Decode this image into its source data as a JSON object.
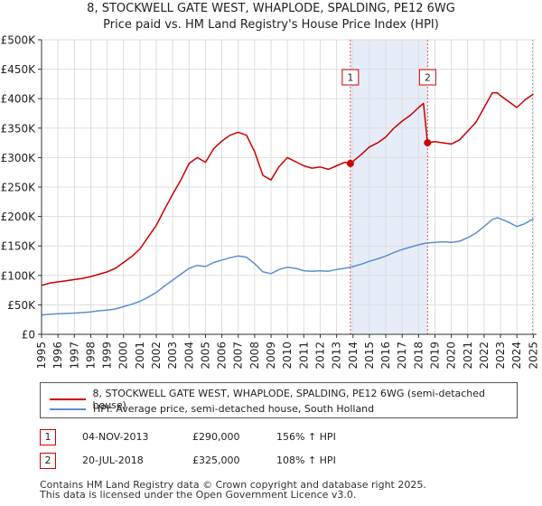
{
  "title_line1": "8, STOCKWELL GATE WEST, WHAPLODE, SPALDING, PE12 6WG",
  "title_line2": "Price paid vs. HM Land Registry's House Price Index (HPI)",
  "chart_data": {
    "type": "line",
    "xlim": [
      1995,
      2025.2
    ],
    "ylim": [
      0,
      500000
    ],
    "y_ticks": [
      0,
      50000,
      100000,
      150000,
      200000,
      250000,
      300000,
      350000,
      400000,
      450000,
      500000
    ],
    "y_tick_labels": [
      "£0",
      "£50K",
      "£100K",
      "£150K",
      "£200K",
      "£250K",
      "£300K",
      "£350K",
      "£400K",
      "£450K",
      "£500K"
    ],
    "x_ticks": [
      1995,
      1996,
      1997,
      1998,
      1999,
      2000,
      2001,
      2002,
      2003,
      2004,
      2005,
      2006,
      2007,
      2008,
      2009,
      2010,
      2011,
      2012,
      2013,
      2014,
      2015,
      2016,
      2017,
      2018,
      2019,
      2020,
      2021,
      2022,
      2023,
      2024,
      2025
    ],
    "grid": true,
    "series": [
      {
        "name": "8, STOCKWELL GATE WEST, WHAPLODE, SPALDING, PE12 6WG (semi-detached house)",
        "color": "#cc0000",
        "x": [
          1995.0,
          1995.5,
          1996.0,
          1996.5,
          1997.0,
          1997.5,
          1998.0,
          1998.5,
          1999.0,
          1999.5,
          2000.0,
          2000.5,
          2001.0,
          2001.5,
          2002.0,
          2002.5,
          2003.0,
          2003.5,
          2004.0,
          2004.5,
          2005.0,
          2005.5,
          2006.0,
          2006.5,
          2007.0,
          2007.5,
          2008.0,
          2008.5,
          2009.0,
          2009.5,
          2010.0,
          2010.5,
          2011.0,
          2011.5,
          2012.0,
          2012.5,
          2013.0,
          2013.5,
          2013.84,
          2014.5,
          2015.0,
          2015.5,
          2016.0,
          2016.5,
          2017.0,
          2017.5,
          2018.0,
          2018.3,
          2018.55,
          2019.0,
          2019.5,
          2020.0,
          2020.5,
          2021.0,
          2021.5,
          2022.0,
          2022.5,
          2022.8,
          2023.0,
          2023.5,
          2024.0,
          2024.5,
          2025.0
        ],
        "y": [
          83000,
          87000,
          89000,
          91000,
          93000,
          95000,
          98000,
          102000,
          106000,
          112000,
          122000,
          132000,
          145000,
          165000,
          185000,
          212000,
          238000,
          262000,
          290000,
          300000,
          292000,
          315000,
          328000,
          338000,
          343000,
          338000,
          310000,
          270000,
          262000,
          285000,
          300000,
          293000,
          286000,
          282000,
          284000,
          280000,
          286000,
          292000,
          290000,
          305000,
          318000,
          325000,
          335000,
          350000,
          362000,
          372000,
          385000,
          392000,
          325000,
          327000,
          325000,
          323000,
          330000,
          345000,
          360000,
          385000,
          410000,
          410000,
          405000,
          395000,
          385000,
          398000,
          408000
        ]
      },
      {
        "name": "HPI: Average price, semi-detached house, South Holland",
        "color": "#5b8fcf",
        "x": [
          1995.0,
          1995.5,
          1996.0,
          1996.5,
          1997.0,
          1997.5,
          1998.0,
          1998.5,
          1999.0,
          1999.5,
          2000.0,
          2000.5,
          2001.0,
          2001.5,
          2002.0,
          2002.5,
          2003.0,
          2003.5,
          2004.0,
          2004.5,
          2005.0,
          2005.5,
          2006.0,
          2006.5,
          2007.0,
          2007.5,
          2008.0,
          2008.5,
          2009.0,
          2009.5,
          2010.0,
          2010.5,
          2011.0,
          2011.5,
          2012.0,
          2012.5,
          2013.0,
          2013.5,
          2014.0,
          2014.5,
          2015.0,
          2015.5,
          2016.0,
          2016.5,
          2017.0,
          2017.5,
          2018.0,
          2018.5,
          2019.0,
          2019.5,
          2020.0,
          2020.5,
          2021.0,
          2021.5,
          2022.0,
          2022.5,
          2022.8,
          2023.0,
          2023.5,
          2024.0,
          2024.5,
          2025.0
        ],
        "y": [
          33000,
          34000,
          35000,
          35500,
          36000,
          37000,
          38000,
          40000,
          41000,
          43000,
          47000,
          51000,
          56000,
          63000,
          71000,
          82000,
          92000,
          102000,
          112000,
          117000,
          115000,
          122000,
          126000,
          130000,
          133000,
          131000,
          120000,
          106000,
          103000,
          110000,
          114000,
          112000,
          108000,
          107000,
          108000,
          107000,
          110000,
          112000,
          115000,
          119000,
          124000,
          128000,
          133000,
          139000,
          144000,
          148000,
          152000,
          155000,
          156000,
          157000,
          156000,
          158000,
          164000,
          172000,
          183000,
          195000,
          198000,
          196000,
          190000,
          183000,
          188000,
          196000
        ]
      }
    ],
    "markers": [
      {
        "label": "1",
        "x": 2013.84,
        "y": 290000
      },
      {
        "label": "2",
        "x": 2018.55,
        "y": 325000
      }
    ]
  },
  "legend": {
    "property_label": "8, STOCKWELL GATE WEST, WHAPLODE, SPALDING, PE12 6WG (semi-detached house)",
    "hpi_label": "HPI: Average price, semi-detached house, South Holland"
  },
  "sales": [
    {
      "num": "1",
      "date": "04-NOV-2013",
      "price": "£290,000",
      "hpi": "156% ↑ HPI"
    },
    {
      "num": "2",
      "date": "20-JUL-2018",
      "price": "£325,000",
      "hpi": "108% ↑ HPI"
    }
  ],
  "footer": {
    "line1": "Contains HM Land Registry data © Crown copyright and database right 2025.",
    "line2": "This data is licensed under the Open Government Licence v3.0."
  }
}
